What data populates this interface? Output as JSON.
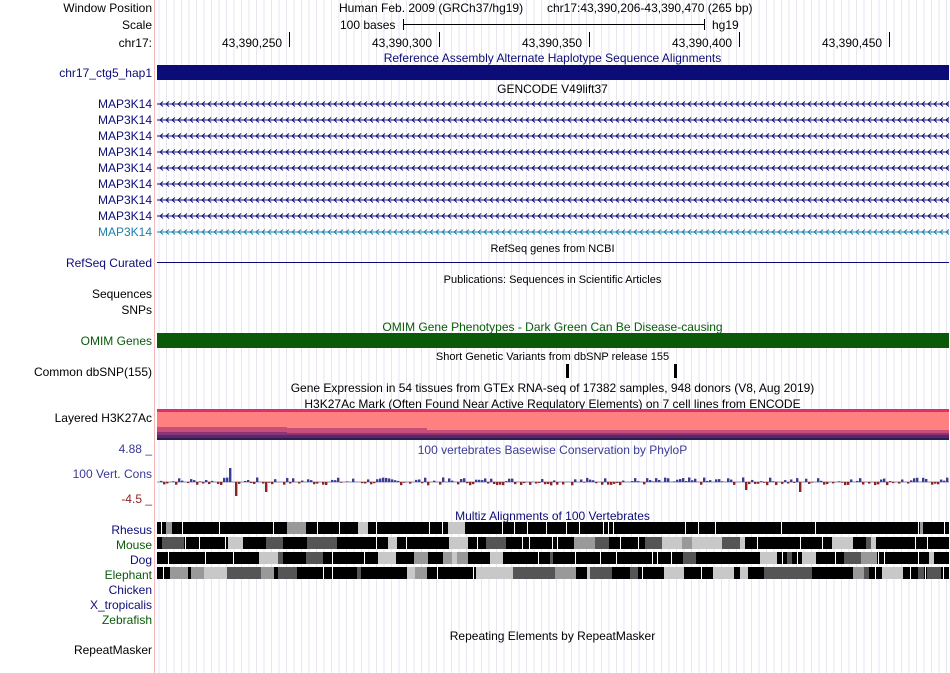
{
  "header": {
    "window_position_label": "Window Position",
    "assembly_text": "Human Feb. 2009 (GRCh37/hg19)",
    "position_text": "chr17:43,390,206-43,390,470 (265 bp)",
    "scale_label": "Scale",
    "scale_bases": "100 bases",
    "scale_db": "hg19",
    "chrom_label": "chr17:",
    "ticks": [
      "43,390,250",
      "43,390,300",
      "43,390,350",
      "43,390,400",
      "43,390,450"
    ]
  },
  "tracks": {
    "alt_hap": {
      "title": "Reference Assembly Alternate Haplotype Sequence Alignments",
      "label": "chr17_ctg5_hap1",
      "color": "#0c0c78"
    },
    "gencode": {
      "title": "GENCODE V49lift37",
      "genes": [
        "MAP3K14",
        "MAP3K14",
        "MAP3K14",
        "MAP3K14",
        "MAP3K14",
        "MAP3K14",
        "MAP3K14",
        "MAP3K14",
        "MAP3K14"
      ]
    },
    "refseq": {
      "title": "RefSeq genes from NCBI",
      "label": "RefSeq Curated"
    },
    "publications": {
      "title": "Publications: Sequences in Scientific Articles",
      "labels": [
        "Sequences",
        "SNPs"
      ]
    },
    "omim": {
      "title": "OMIM Gene Phenotypes - Dark Green Can Be Disease-causing",
      "label": "OMIM Genes",
      "color": "#0a5a0a"
    },
    "dbsnp": {
      "title": "Short Genetic Variants from dbSNP release 155",
      "label": "Common dbSNP(155)"
    },
    "gtex": {
      "title": "Gene Expression in 54 tissues from GTEx RNA-seq of 17382 samples, 948 donors (V8, Aug 2019)"
    },
    "h3k27ac": {
      "title": "H3K27Ac Mark (Often Found Near Active Regulatory Elements) on 7 cell lines from ENCODE",
      "label": "Layered H3K27Ac"
    },
    "phylop": {
      "title": "100 vertebrates Basewise Conservation by PhyloP",
      "label": "100 Vert. Cons",
      "max_label": "4.88 _",
      "min_label": "-4.5 _"
    },
    "multiz": {
      "title": "Multiz Alignments of 100 Vertebrates",
      "species": [
        "Rhesus",
        "Mouse",
        "Dog",
        "Elephant",
        "Chicken",
        "X_tropicalis",
        "Zebrafish"
      ]
    },
    "rmsk": {
      "title": "Repeating Elements by RepeatMasker",
      "label": "RepeatMasker"
    }
  }
}
